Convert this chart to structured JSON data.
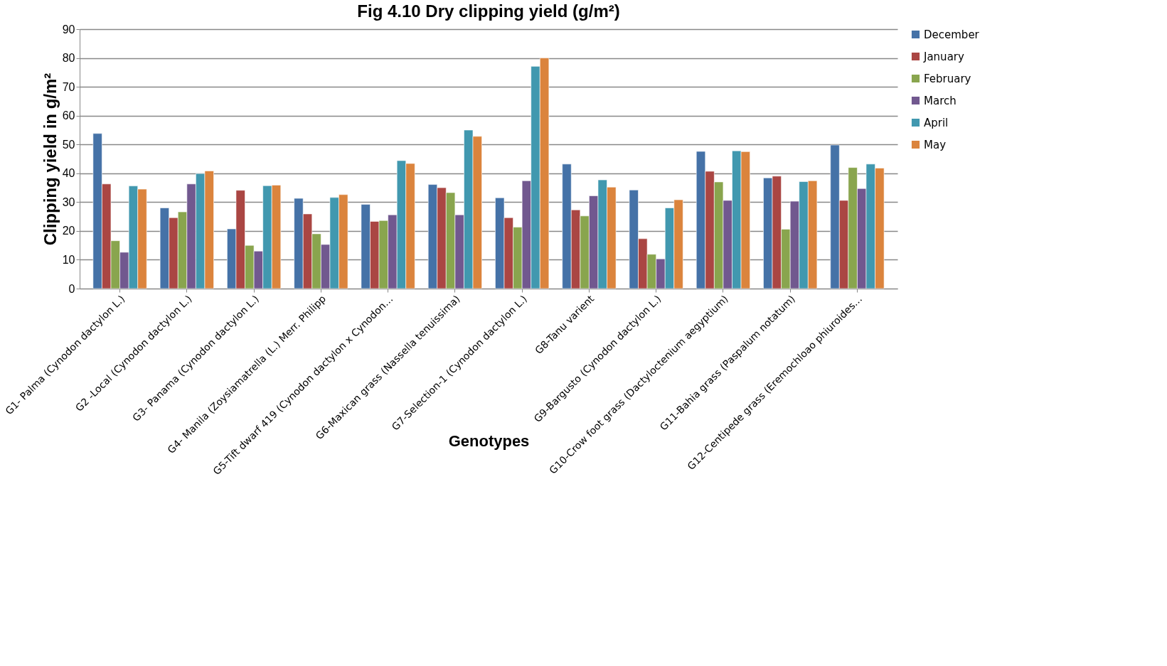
{
  "chart_data": {
    "type": "bar",
    "title": "Fig 4.10 Dry clipping yield (g/m²)",
    "xlabel": "Genotypes",
    "ylabel": "Clipping yield in g/m²",
    "categories": [
      "G1- Palma (Cynodon dactylon L.)",
      "G2 -Local (Cynodon dactylon L.)",
      "G3- Panama (Cynodon dactylon L.)",
      "G4- Manila (Zoysiamatrella (L.) Merr. Philipp",
      "G5-Tift dwarf 419 (Cynodon dactylon x Cynodon…",
      "G6-Maxican grass (Nassella tenuissima)",
      "G7-Selection-1 (Cynodon dactylon L.)",
      "G8-Tanu varient",
      "G9-Bargusto (Cynodon dactylon L.)",
      "G10-Crow foot grass (Dactyloctenium aegyptium)",
      "G11-Bahia grass (Paspalum notatum)",
      "G12-Centipede grass (Eremochloao phiuroides…"
    ],
    "series": [
      {
        "name": "December",
        "color": "#4572a7",
        "values": [
          53.8,
          28,
          20.7,
          31.3,
          29.2,
          36.1,
          31.5,
          43.2,
          34.2,
          47.6,
          38.4,
          49.8
        ]
      },
      {
        "name": "January",
        "color": "#aa4643",
        "values": [
          36.3,
          24.6,
          34.1,
          25.9,
          23.3,
          35,
          24.6,
          27.3,
          17.3,
          40.7,
          39,
          30.6
        ]
      },
      {
        "name": "February",
        "color": "#89a54e",
        "values": [
          16.6,
          26.6,
          15,
          19,
          23.6,
          33.3,
          21.3,
          25.2,
          11.9,
          37,
          20.6,
          42
        ]
      },
      {
        "name": "March",
        "color": "#71588f",
        "values": [
          12.6,
          36.3,
          13,
          15.3,
          25.6,
          25.6,
          37.4,
          32.2,
          10.3,
          30.6,
          30.3,
          34.7
        ]
      },
      {
        "name": "April",
        "color": "#4198af",
        "values": [
          35.6,
          39.9,
          35.7,
          31.6,
          44.4,
          55,
          77.1,
          37.7,
          28,
          47.8,
          37.1,
          43.2
        ]
      },
      {
        "name": "May",
        "color": "#db843d",
        "values": [
          34.5,
          40.8,
          35.9,
          32.6,
          43.4,
          52.8,
          80,
          35.2,
          30.8,
          47.5,
          37.4,
          41.8
        ]
      }
    ],
    "ylim": [
      0,
      90
    ],
    "yticks": [
      0,
      10,
      20,
      30,
      40,
      50,
      60,
      70,
      80,
      90
    ],
    "grid": "y",
    "legend": "right"
  }
}
